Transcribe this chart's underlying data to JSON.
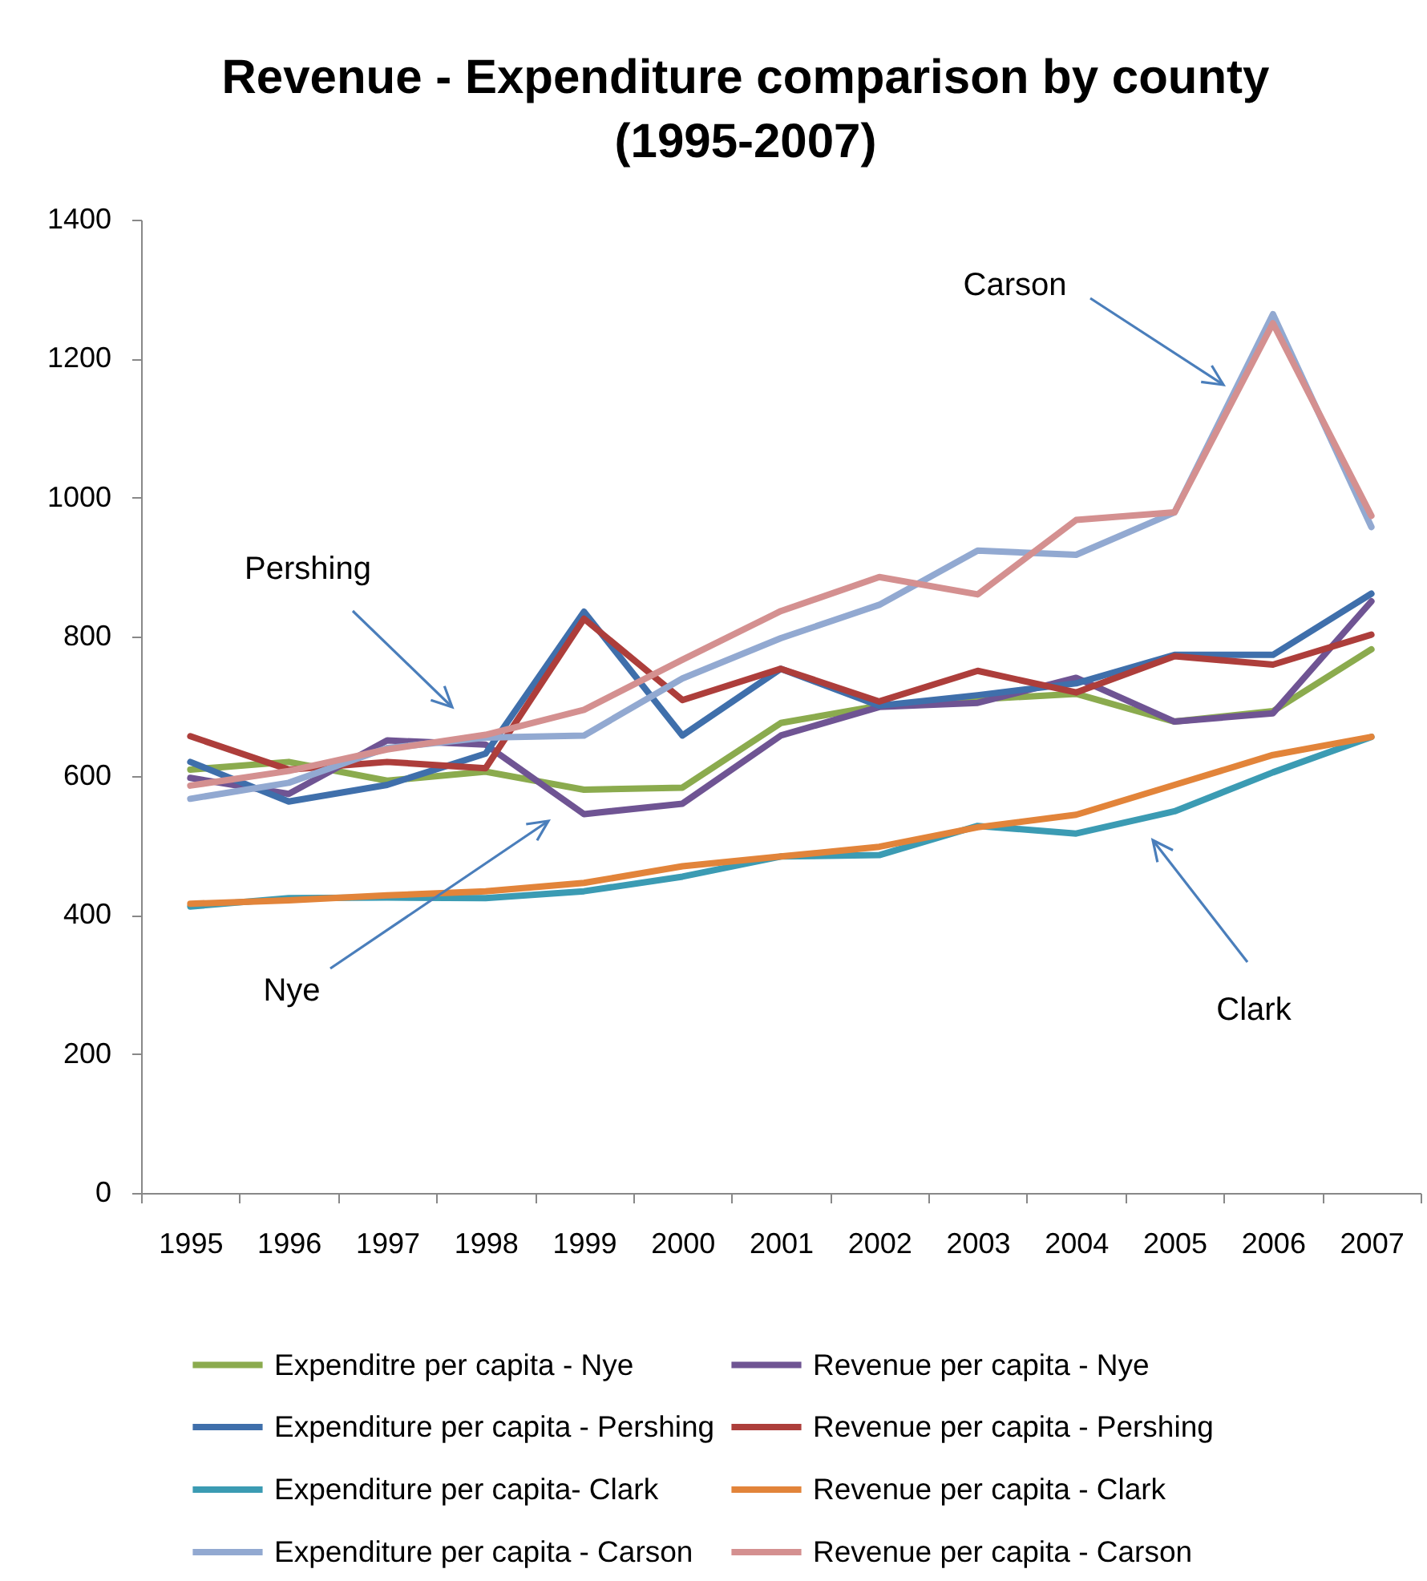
{
  "chart_data": {
    "type": "line",
    "title": "Revenue - Expenditure comparison by county\n(1995-2007)",
    "categories": [
      "1995",
      "1996",
      "1997",
      "1998",
      "1999",
      "2000",
      "2001",
      "2002",
      "2003",
      "2004",
      "2005",
      "2006",
      "2007"
    ],
    "series": [
      {
        "name": "Expenditre per capita - Nye",
        "color": "#8bab4e",
        "values": [
          609,
          620,
          593,
          606,
          580,
          583,
          676,
          701,
          710,
          718,
          678,
          693,
          782
        ]
      },
      {
        "name": "Revenue per capita - Nye",
        "color": "#6f5493",
        "values": [
          597,
          574,
          651,
          645,
          545,
          560,
          658,
          699,
          705,
          741,
          678,
          690,
          851
        ]
      },
      {
        "name": "Expenditure per capita - Pershing",
        "color": "#3f6fab",
        "values": [
          620,
          563,
          587,
          632,
          836,
          658,
          754,
          701,
          716,
          733,
          774,
          774,
          862
        ]
      },
      {
        "name": "Revenue per capita - Pershing",
        "color": "#ad3e3b",
        "values": [
          657,
          609,
          620,
          611,
          826,
          709,
          754,
          707,
          751,
          720,
          772,
          760,
          803
        ]
      },
      {
        "name": "Expenditure per capita- Clark",
        "color": "#3b9bb3",
        "values": [
          412,
          424,
          425,
          424,
          434,
          455,
          484,
          486,
          528,
          517,
          549,
          605,
          656
        ]
      },
      {
        "name": "Revenue per capita - Clark",
        "color": "#e2843a",
        "values": [
          416,
          421,
          428,
          434,
          446,
          470,
          484,
          498,
          526,
          544,
          587,
          630,
          656
        ]
      },
      {
        "name": "Expenditure per capita - Carson",
        "color": "#92a9d1",
        "values": [
          567,
          590,
          640,
          655,
          658,
          740,
          798,
          846,
          924,
          918,
          979,
          1264,
          958
        ]
      },
      {
        "name": "Revenue per capita - Carson",
        "color": "#d49090",
        "values": [
          586,
          607,
          638,
          659,
          695,
          767,
          837,
          886,
          861,
          968,
          979,
          1251,
          974
        ]
      }
    ],
    "ylim": [
      0,
      1400
    ],
    "yticks": [
      0,
      200,
      400,
      600,
      800,
      1000,
      1200,
      1400
    ],
    "grid": false,
    "legend": "bottom",
    "annotations": [
      "Carson",
      "Pershing",
      "Nye",
      "Clark"
    ]
  }
}
